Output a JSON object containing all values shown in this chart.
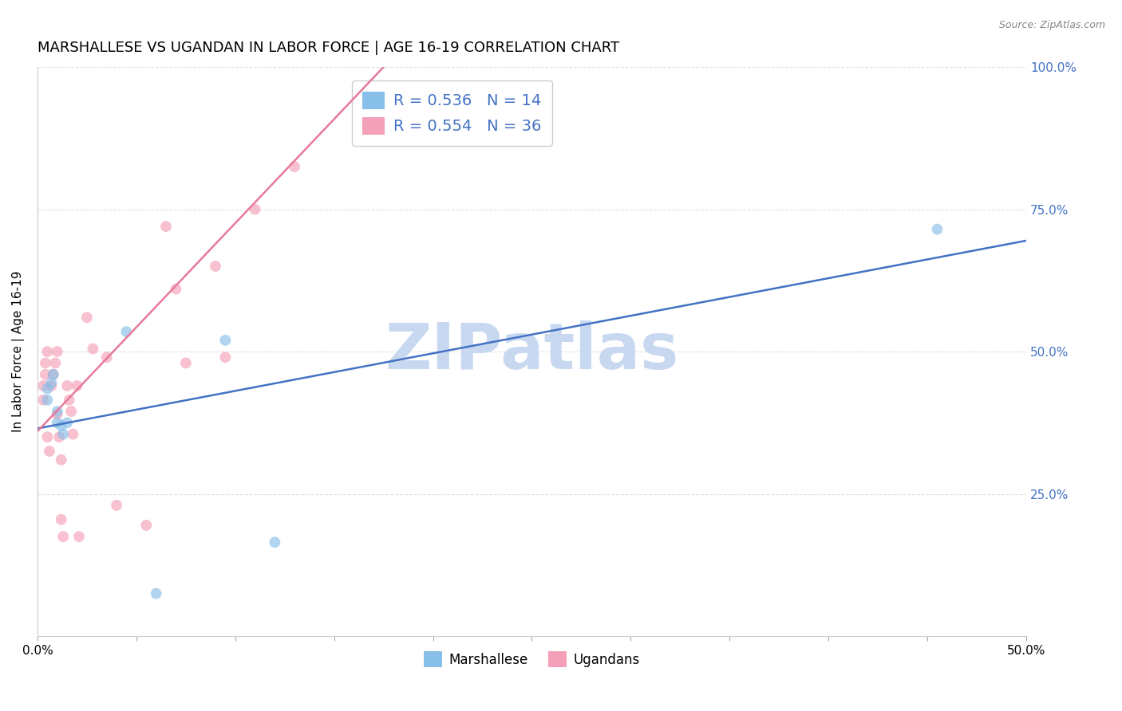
{
  "title": "MARSHALLESE VS UGANDAN IN LABOR FORCE | AGE 16-19 CORRELATION CHART",
  "source_text": "Source: ZipAtlas.com",
  "ylabel": "In Labor Force | Age 16-19",
  "xlim": [
    0.0,
    0.5
  ],
  "ylim": [
    0.0,
    1.0
  ],
  "xtick_vals": [
    0.0,
    0.05,
    0.1,
    0.15,
    0.2,
    0.25,
    0.3,
    0.35,
    0.4,
    0.45,
    0.5
  ],
  "xtick_labels_show": {
    "0.0": "0.0%",
    "0.5": "50.0%"
  },
  "ytick_vals": [
    0.25,
    0.5,
    0.75,
    1.0
  ],
  "ytick_labels": [
    "25.0%",
    "50.0%",
    "75.0%",
    "100.0%"
  ],
  "blue_R": 0.536,
  "blue_N": 14,
  "pink_R": 0.554,
  "pink_N": 36,
  "blue_scatter_x": [
    0.005,
    0.005,
    0.007,
    0.008,
    0.01,
    0.01,
    0.012,
    0.013,
    0.015,
    0.045,
    0.095,
    0.455,
    0.12,
    0.06
  ],
  "blue_scatter_y": [
    0.415,
    0.435,
    0.445,
    0.46,
    0.375,
    0.395,
    0.37,
    0.355,
    0.375,
    0.535,
    0.52,
    0.715,
    0.165,
    0.075
  ],
  "pink_scatter_x": [
    0.003,
    0.003,
    0.004,
    0.004,
    0.005,
    0.005,
    0.006,
    0.007,
    0.008,
    0.009,
    0.01,
    0.01,
    0.011,
    0.012,
    0.012,
    0.013,
    0.015,
    0.016,
    0.017,
    0.018,
    0.02,
    0.021,
    0.025,
    0.028,
    0.035,
    0.04,
    0.055,
    0.065,
    0.07,
    0.075,
    0.09,
    0.095,
    0.11,
    0.13,
    0.175,
    0.19
  ],
  "pink_scatter_y": [
    0.415,
    0.44,
    0.46,
    0.48,
    0.5,
    0.35,
    0.325,
    0.44,
    0.46,
    0.48,
    0.5,
    0.39,
    0.35,
    0.31,
    0.205,
    0.175,
    0.44,
    0.415,
    0.395,
    0.355,
    0.44,
    0.175,
    0.56,
    0.505,
    0.49,
    0.23,
    0.195,
    0.72,
    0.61,
    0.48,
    0.65,
    0.49,
    0.75,
    0.825,
    0.875,
    0.95
  ],
  "blue_line_x": [
    0.0,
    0.5
  ],
  "blue_line_y": [
    0.365,
    0.695
  ],
  "pink_line_x": [
    0.0,
    0.175
  ],
  "pink_line_y": [
    0.36,
    1.0
  ],
  "blue_color": "#88bfe8",
  "pink_color": "#f4a0b8",
  "blue_line_color": "#4472c4",
  "pink_line_color": "#e8799a",
  "watermark_color": "#c8d8f0",
  "bg_color": "#ffffff",
  "grid_color": "#e0e0e0",
  "marker_size": 100,
  "marker_alpha": 0.65,
  "title_fontsize": 13,
  "label_fontsize": 11,
  "tick_fontsize": 11,
  "right_tick_color": "#4472c4",
  "legend_fontsize": 14
}
